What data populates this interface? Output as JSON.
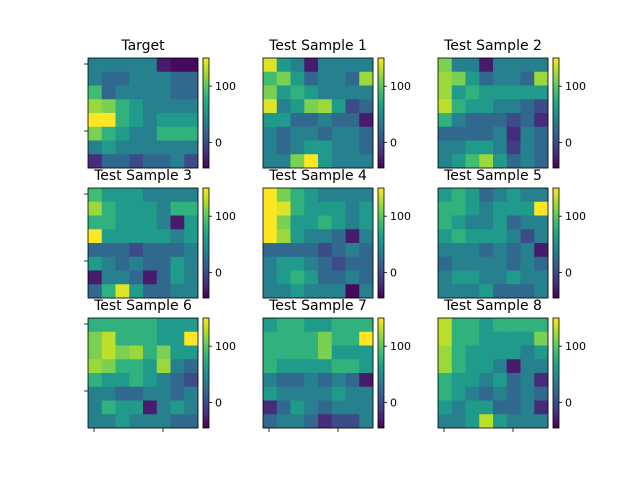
{
  "chart_data": [
    {
      "type": "heatmap",
      "title": "Target",
      "colorbar": {
        "vmin": -45,
        "vmax": 150,
        "ticks": [
          0,
          100
        ]
      },
      "values": [
        [
          40,
          40,
          40,
          40,
          40,
          -30,
          -40,
          -40
        ],
        [
          40,
          20,
          20,
          40,
          40,
          40,
          20,
          20
        ],
        [
          90,
          20,
          40,
          40,
          40,
          40,
          20,
          20
        ],
        [
          120,
          110,
          80,
          60,
          40,
          40,
          40,
          40
        ],
        [
          150,
          150,
          80,
          60,
          40,
          60,
          60,
          60
        ],
        [
          110,
          80,
          60,
          40,
          40,
          80,
          80,
          80
        ],
        [
          40,
          60,
          40,
          40,
          40,
          40,
          40,
          40
        ],
        [
          -20,
          20,
          20,
          0,
          20,
          20,
          40,
          0
        ]
      ]
    },
    {
      "type": "heatmap",
      "title": "Test Sample 1",
      "colorbar": {
        "vmin": -45,
        "vmax": 150,
        "ticks": [
          0,
          100
        ]
      },
      "values": [
        [
          140,
          60,
          40,
          -30,
          40,
          40,
          40,
          40
        ],
        [
          90,
          110,
          60,
          20,
          40,
          40,
          20,
          120
        ],
        [
          110,
          60,
          80,
          60,
          40,
          40,
          40,
          40
        ],
        [
          140,
          40,
          60,
          110,
          120,
          60,
          0,
          20
        ],
        [
          60,
          60,
          20,
          20,
          40,
          20,
          20,
          -30
        ],
        [
          40,
          20,
          40,
          40,
          20,
          40,
          40,
          20
        ],
        [
          40,
          20,
          40,
          60,
          60,
          40,
          40,
          20
        ],
        [
          40,
          40,
          110,
          150,
          60,
          40,
          40,
          40
        ]
      ]
    },
    {
      "type": "heatmap",
      "title": "Test Sample 2",
      "colorbar": {
        "vmin": -45,
        "vmax": 150,
        "ticks": [
          0,
          100
        ]
      },
      "values": [
        [
          110,
          40,
          40,
          -30,
          40,
          40,
          40,
          40
        ],
        [
          120,
          110,
          60,
          20,
          40,
          40,
          20,
          120
        ],
        [
          120,
          60,
          80,
          60,
          60,
          60,
          60,
          60
        ],
        [
          130,
          80,
          60,
          60,
          40,
          40,
          20,
          0
        ],
        [
          80,
          40,
          20,
          20,
          20,
          0,
          20,
          -20
        ],
        [
          20,
          20,
          20,
          20,
          40,
          -20,
          40,
          20
        ],
        [
          40,
          40,
          60,
          60,
          40,
          -10,
          40,
          20
        ],
        [
          40,
          60,
          90,
          120,
          60,
          20,
          40,
          20
        ]
      ]
    },
    {
      "type": "heatmap",
      "title": "Test Sample 3",
      "colorbar": {
        "vmin": -45,
        "vmax": 150,
        "ticks": [
          0,
          100
        ]
      },
      "values": [
        [
          90,
          60,
          60,
          60,
          40,
          40,
          40,
          40
        ],
        [
          120,
          80,
          60,
          60,
          60,
          40,
          80,
          80
        ],
        [
          80,
          80,
          60,
          60,
          60,
          40,
          -30,
          60
        ],
        [
          150,
          60,
          60,
          60,
          60,
          60,
          40,
          60
        ],
        [
          20,
          20,
          20,
          0,
          20,
          20,
          20,
          40
        ],
        [
          60,
          40,
          20,
          40,
          20,
          20,
          60,
          40
        ],
        [
          -30,
          40,
          40,
          20,
          -30,
          20,
          60,
          40
        ],
        [
          20,
          80,
          140,
          60,
          20,
          20,
          40,
          40
        ]
      ]
    },
    {
      "type": "heatmap",
      "title": "Test Sample 4",
      "colorbar": {
        "vmin": -45,
        "vmax": 150,
        "ticks": [
          0,
          100
        ]
      },
      "values": [
        [
          150,
          110,
          80,
          60,
          40,
          40,
          40,
          40
        ],
        [
          150,
          140,
          80,
          60,
          60,
          60,
          40,
          60
        ],
        [
          150,
          110,
          60,
          60,
          80,
          60,
          40,
          60
        ],
        [
          150,
          120,
          60,
          40,
          40,
          20,
          -30,
          40
        ],
        [
          20,
          20,
          20,
          20,
          0,
          20,
          40,
          20
        ],
        [
          40,
          60,
          60,
          40,
          20,
          0,
          20,
          20
        ],
        [
          40,
          60,
          80,
          60,
          20,
          20,
          40,
          20
        ],
        [
          40,
          40,
          60,
          40,
          40,
          40,
          -40,
          40
        ]
      ]
    },
    {
      "type": "heatmap",
      "title": "Test Sample 5",
      "colorbar": {
        "vmin": -45,
        "vmax": 150,
        "ticks": [
          0,
          100
        ]
      },
      "values": [
        [
          60,
          80,
          60,
          20,
          40,
          60,
          40,
          40
        ],
        [
          80,
          80,
          60,
          40,
          60,
          60,
          60,
          150
        ],
        [
          80,
          60,
          40,
          40,
          60,
          20,
          40,
          40
        ],
        [
          60,
          80,
          60,
          60,
          60,
          40,
          0,
          40
        ],
        [
          40,
          40,
          40,
          20,
          40,
          20,
          40,
          -30
        ],
        [
          20,
          40,
          40,
          40,
          40,
          20,
          40,
          20
        ],
        [
          40,
          60,
          60,
          40,
          40,
          60,
          40,
          40
        ],
        [
          40,
          40,
          40,
          60,
          20,
          20,
          20,
          40
        ]
      ]
    },
    {
      "type": "heatmap",
      "title": "Test Sample 6",
      "colorbar": {
        "vmin": -45,
        "vmax": 150,
        "ticks": [
          0,
          100
        ]
      },
      "values": [
        [
          80,
          80,
          80,
          80,
          80,
          60,
          60,
          60
        ],
        [
          110,
          130,
          80,
          80,
          80,
          60,
          60,
          150
        ],
        [
          110,
          130,
          110,
          120,
          80,
          110,
          60,
          60
        ],
        [
          120,
          110,
          80,
          80,
          60,
          120,
          40,
          20
        ],
        [
          80,
          60,
          60,
          80,
          60,
          40,
          20,
          0
        ],
        [
          40,
          40,
          20,
          20,
          40,
          40,
          20,
          40
        ],
        [
          40,
          80,
          60,
          60,
          -30,
          40,
          60,
          40
        ],
        [
          40,
          40,
          60,
          40,
          40,
          40,
          20,
          20
        ]
      ]
    },
    {
      "type": "heatmap",
      "title": "Test Sample 7",
      "colorbar": {
        "vmin": -45,
        "vmax": 150,
        "ticks": [
          0,
          100
        ]
      },
      "values": [
        [
          60,
          80,
          80,
          60,
          60,
          80,
          80,
          80
        ],
        [
          80,
          80,
          80,
          80,
          110,
          80,
          80,
          150
        ],
        [
          80,
          80,
          80,
          80,
          110,
          60,
          60,
          60
        ],
        [
          80,
          60,
          60,
          60,
          60,
          80,
          80,
          60
        ],
        [
          40,
          20,
          20,
          40,
          20,
          40,
          20,
          -30
        ],
        [
          60,
          40,
          40,
          40,
          40,
          60,
          40,
          40
        ],
        [
          -20,
          20,
          60,
          40,
          20,
          40,
          40,
          40
        ],
        [
          20,
          40,
          40,
          20,
          -20,
          0,
          0,
          40
        ]
      ]
    },
    {
      "type": "heatmap",
      "title": "Test Sample 8",
      "colorbar": {
        "vmin": -45,
        "vmax": 150,
        "ticks": [
          0,
          100
        ]
      },
      "values": [
        [
          130,
          80,
          80,
          60,
          80,
          80,
          80,
          80
        ],
        [
          130,
          80,
          80,
          60,
          60,
          60,
          60,
          110
        ],
        [
          120,
          80,
          60,
          60,
          60,
          60,
          40,
          60
        ],
        [
          120,
          80,
          60,
          60,
          40,
          -30,
          40,
          40
        ],
        [
          80,
          60,
          60,
          40,
          60,
          20,
          40,
          -20
        ],
        [
          80,
          60,
          40,
          20,
          40,
          20,
          40,
          20
        ],
        [
          60,
          40,
          60,
          60,
          20,
          20,
          40,
          -20
        ],
        [
          40,
          40,
          60,
          130,
          60,
          40,
          40,
          40
        ]
      ]
    }
  ]
}
